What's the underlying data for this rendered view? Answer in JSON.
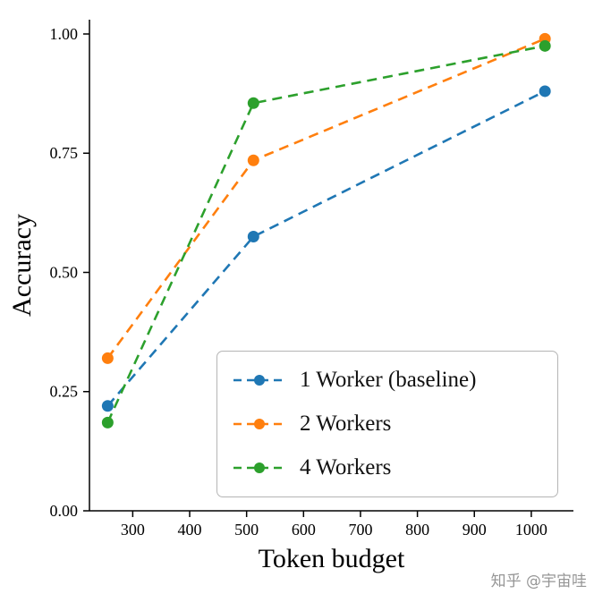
{
  "chart_data": {
    "type": "line",
    "title": "",
    "xlabel": "Token budget",
    "ylabel": "Accuracy",
    "x": [
      256,
      512,
      1024
    ],
    "series": [
      {
        "name": "1 Worker (baseline)",
        "color": "#1f77b4",
        "values": [
          0.22,
          0.575,
          0.88
        ]
      },
      {
        "name": "2 Workers",
        "color": "#ff7f0e",
        "values": [
          0.32,
          0.735,
          0.99
        ]
      },
      {
        "name": "4 Workers",
        "color": "#2ca02c",
        "values": [
          0.185,
          0.855,
          0.975
        ]
      }
    ],
    "xlim": [
      224,
      1074
    ],
    "ylim": [
      0,
      1.03
    ],
    "xticks": [
      300,
      400,
      500,
      600,
      700,
      800,
      900,
      1000
    ],
    "yticks": [
      0.0,
      0.25,
      0.5,
      0.75,
      1.0
    ],
    "line_style": "dashed",
    "marker": "circle",
    "grid": false,
    "legend_position": "lower right"
  },
  "watermark": "知乎 @宇宙哇"
}
